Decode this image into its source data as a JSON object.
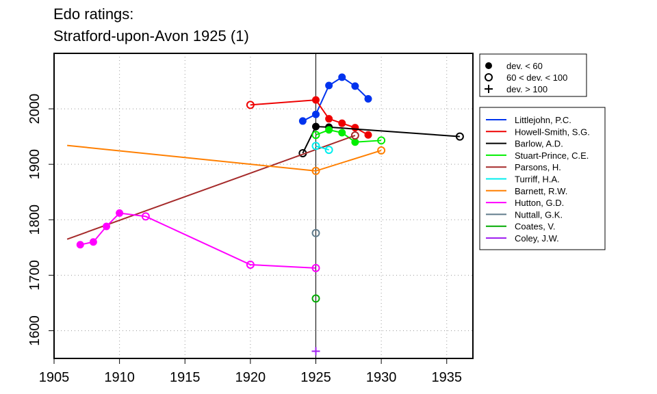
{
  "chart_data": {
    "type": "line",
    "title": [
      "Edo ratings:",
      "Stratford-upon-Avon 1925 (1)"
    ],
    "xlabel": "",
    "ylabel": "",
    "xlim": [
      1905,
      1937
    ],
    "ylim": [
      1550,
      2100
    ],
    "xticks": [
      1905,
      1910,
      1915,
      1920,
      1925,
      1930,
      1935
    ],
    "yticks": [
      1600,
      1700,
      1800,
      1900,
      2000
    ],
    "grid": "dotted",
    "reference_line_x": 1925,
    "deviation_legend": [
      {
        "marker": "filled",
        "label": "dev. < 60"
      },
      {
        "marker": "open",
        "label": "60 < dev. < 100"
      },
      {
        "marker": "cross",
        "label": "dev. > 100"
      }
    ],
    "legend_position": "right",
    "series": [
      {
        "name": "Littlejohn, P.C.",
        "color": "#0033ee",
        "points": [
          [
            1924,
            1978,
            "filled"
          ],
          [
            1925,
            1990,
            "filled"
          ],
          [
            1926,
            2042,
            "filled"
          ],
          [
            1927,
            2057,
            "filled"
          ],
          [
            1928,
            2041,
            "filled"
          ],
          [
            1929,
            2018,
            "filled"
          ]
        ]
      },
      {
        "name": "Howell-Smith, S.G.",
        "color": "#ee0000",
        "points": [
          [
            1920,
            2007,
            "open"
          ],
          [
            1925,
            2016,
            "filled"
          ],
          [
            1926,
            1982,
            "filled"
          ],
          [
            1927,
            1974,
            "filled"
          ],
          [
            1928,
            1966,
            "filled"
          ],
          [
            1929,
            1953,
            "filled"
          ]
        ]
      },
      {
        "name": "Barlow, A.D.",
        "color": "#000000",
        "points": [
          [
            1924,
            1920,
            "open"
          ],
          [
            1925,
            1968,
            "filled"
          ],
          [
            1926,
            1967,
            "filled"
          ],
          [
            1936,
            1950,
            "open"
          ]
        ]
      },
      {
        "name": "Stuart-Prince, C.E.",
        "color": "#00ee00",
        "points": [
          [
            1925,
            1953,
            "open"
          ],
          [
            1926,
            1962,
            "filled"
          ],
          [
            1927,
            1957,
            "filled"
          ],
          [
            1928,
            1940,
            "filled"
          ],
          [
            1930,
            1943,
            "open"
          ]
        ]
      },
      {
        "name": "Parsons, H.",
        "color": "#a52a2a",
        "points": [
          [
            1906,
            1765,
            "none"
          ],
          [
            1928,
            1952,
            "open"
          ]
        ]
      },
      {
        "name": "Turriff, H.A.",
        "color": "#00eeee",
        "points": [
          [
            1925,
            1933,
            "open"
          ],
          [
            1926,
            1926,
            "open"
          ]
        ]
      },
      {
        "name": "Barnett, R.W.",
        "color": "#ff7f00",
        "points": [
          [
            1906,
            1934,
            "none"
          ],
          [
            1925,
            1888,
            "open"
          ],
          [
            1930,
            1925,
            "open"
          ]
        ]
      },
      {
        "name": "Hutton, G.D.",
        "color": "#ff00ff",
        "points": [
          [
            1907,
            1755,
            "filled"
          ],
          [
            1908,
            1760,
            "filled"
          ],
          [
            1909,
            1788,
            "filled"
          ],
          [
            1910,
            1812,
            "filled"
          ],
          [
            1912,
            1806,
            "open"
          ],
          [
            1920,
            1719,
            "open"
          ],
          [
            1925,
            1713,
            "open"
          ]
        ]
      },
      {
        "name": "Nuttall, G.K.",
        "color": "#607b8b",
        "points": [
          [
            1925,
            1776,
            "open"
          ]
        ]
      },
      {
        "name": "Coates, V.",
        "color": "#00aa00",
        "points": [
          [
            1925,
            1658,
            "open"
          ]
        ]
      },
      {
        "name": "Coley, J.W.",
        "color": "#a020f0",
        "points": [
          [
            1925,
            1563,
            "cross"
          ]
        ]
      }
    ]
  }
}
